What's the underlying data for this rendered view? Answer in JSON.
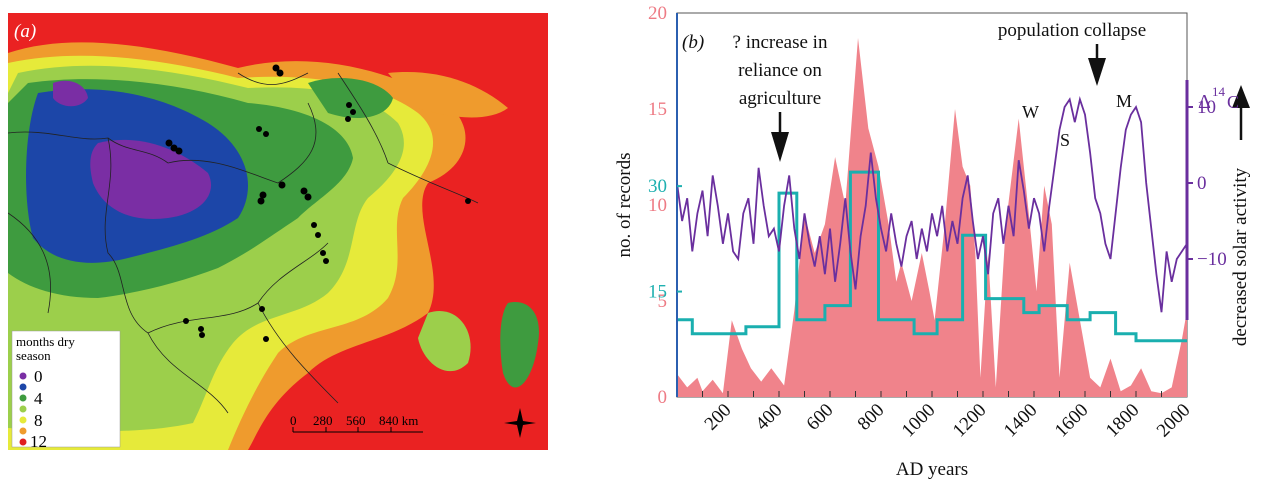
{
  "panel_a": {
    "label": "(a)",
    "legend": {
      "title_line1": "months dry",
      "title_line2": "season",
      "items": [
        {
          "label": "0",
          "color": "#7b2fa6"
        },
        {
          "label": "4",
          "color": "#3f9a3f"
        },
        {
          "label": "8",
          "color": "#f0c020"
        },
        {
          "label": "12",
          "color": "#e02020"
        }
      ]
    },
    "scale_bar": {
      "labels": [
        "0",
        "280",
        "560",
        "840 km"
      ]
    },
    "colors": {
      "red": "#ea2222",
      "orange": "#ef9b2d",
      "yellow": "#e6ea3a",
      "lightgreen": "#9ccf4b",
      "green": "#3e9b3f",
      "blue": "#1c46a8",
      "purple": "#7a2ea4",
      "site": "#000000"
    },
    "site_count_note": ""
  },
  "chart_data": {
    "type": "line",
    "panel_label": "(b)",
    "annotations": {
      "agriculture": [
        "? increase in",
        "reliance on",
        "agriculture"
      ],
      "collapse": "population collapse",
      "minima": {
        "W": "W",
        "S": "S",
        "M": "M"
      }
    },
    "x": {
      "label": "AD years",
      "min": 0,
      "max": 2000,
      "ticks": [
        "200",
        "400",
        "600",
        "800",
        "1000",
        "1200",
        "1400",
        "1600",
        "1800",
        "2000"
      ]
    },
    "y_left_pink": {
      "ticks": [
        "0",
        "5",
        "10",
        "15",
        "20"
      ],
      "max": 20,
      "color": "#ee7b85"
    },
    "y_left_teal": {
      "ticks": [
        "15",
        "30"
      ],
      "color": "#1fb0b0"
    },
    "y_left_label": "no. of records",
    "y_right": {
      "label_delta": "Δ",
      "label_sup": "14",
      "label_c": "C",
      "ticks": [
        "10",
        "0",
        "−10"
      ],
      "label": "decreased solar activity",
      "color": "#6a2f9e"
    },
    "series": [
      {
        "kind": "area",
        "color": "#f0838b",
        "points": [
          [
            0,
            1.2
          ],
          [
            40,
            0.5
          ],
          [
            80,
            1.0
          ],
          [
            100,
            0.3
          ],
          [
            140,
            0.9
          ],
          [
            180,
            0.2
          ],
          [
            215,
            4.0
          ],
          [
            255,
            2.5
          ],
          [
            290,
            1.5
          ],
          [
            330,
            0.8
          ],
          [
            370,
            1.5
          ],
          [
            420,
            0.6
          ],
          [
            460,
            4.5
          ],
          [
            500,
            9.5
          ],
          [
            540,
            7.5
          ],
          [
            580,
            9.0
          ],
          [
            620,
            12.5
          ],
          [
            660,
            10.0
          ],
          [
            710,
            18.7
          ],
          [
            750,
            14.0
          ],
          [
            790,
            12.0
          ],
          [
            830,
            9.0
          ],
          [
            860,
            6.0
          ],
          [
            880,
            7.0
          ],
          [
            920,
            5.0
          ],
          [
            960,
            7.5
          ],
          [
            990,
            5.5
          ],
          [
            1010,
            4.0
          ],
          [
            1050,
            9.0
          ],
          [
            1090,
            15.0
          ],
          [
            1120,
            12.0
          ],
          [
            1150,
            11.0
          ],
          [
            1170,
            7.5
          ],
          [
            1190,
            1.0
          ],
          [
            1220,
            7.5
          ],
          [
            1250,
            0.5
          ],
          [
            1290,
            9.0
          ],
          [
            1340,
            14.5
          ],
          [
            1380,
            9.5
          ],
          [
            1410,
            5.5
          ],
          [
            1440,
            11.0
          ],
          [
            1470,
            9.0
          ],
          [
            1500,
            1.0
          ],
          [
            1540,
            7.0
          ],
          [
            1580,
            4.0
          ],
          [
            1620,
            1.0
          ],
          [
            1660,
            0.5
          ],
          [
            1700,
            2.0
          ],
          [
            1740,
            0.3
          ],
          [
            1780,
            0.6
          ],
          [
            1820,
            1.5
          ],
          [
            1860,
            0.3
          ],
          [
            1900,
            0.2
          ],
          [
            1940,
            0.5
          ],
          [
            1980,
            3.0
          ],
          [
            2000,
            4.5
          ]
        ]
      },
      {
        "kind": "step",
        "color": "#1aafaf",
        "points": [
          [
            0,
            11
          ],
          [
            60,
            11
          ],
          [
            60,
            9
          ],
          [
            270,
            9
          ],
          [
            270,
            10
          ],
          [
            400,
            10
          ],
          [
            400,
            29
          ],
          [
            470,
            29
          ],
          [
            470,
            11
          ],
          [
            580,
            11
          ],
          [
            580,
            13
          ],
          [
            680,
            13
          ],
          [
            680,
            32
          ],
          [
            790,
            32
          ],
          [
            790,
            11
          ],
          [
            930,
            11
          ],
          [
            930,
            9
          ],
          [
            1020,
            9
          ],
          [
            1020,
            11
          ],
          [
            1120,
            11
          ],
          [
            1120,
            23
          ],
          [
            1210,
            23
          ],
          [
            1210,
            14
          ],
          [
            1360,
            14
          ],
          [
            1360,
            12
          ],
          [
            1420,
            12
          ],
          [
            1420,
            13
          ],
          [
            1530,
            13
          ],
          [
            1530,
            11
          ],
          [
            1620,
            11
          ],
          [
            1620,
            12
          ],
          [
            1720,
            12
          ],
          [
            1720,
            9
          ],
          [
            1800,
            9
          ],
          [
            1800,
            8
          ],
          [
            2000,
            8
          ]
        ]
      },
      {
        "kind": "line",
        "color": "#6a2f9e",
        "points": [
          [
            0,
            0
          ],
          [
            20,
            -5
          ],
          [
            40,
            -2
          ],
          [
            60,
            -9
          ],
          [
            80,
            -4
          ],
          [
            100,
            -1
          ],
          [
            120,
            -7
          ],
          [
            140,
            1
          ],
          [
            160,
            -3
          ],
          [
            180,
            -8
          ],
          [
            200,
            -4
          ],
          [
            220,
            -9
          ],
          [
            240,
            -10
          ],
          [
            260,
            -4
          ],
          [
            280,
            -2
          ],
          [
            300,
            -8
          ],
          [
            320,
            2
          ],
          [
            340,
            -3
          ],
          [
            360,
            -7
          ],
          [
            380,
            -6
          ],
          [
            400,
            -9
          ],
          [
            420,
            -3
          ],
          [
            440,
            1
          ],
          [
            460,
            -6
          ],
          [
            480,
            -10
          ],
          [
            500,
            -4
          ],
          [
            520,
            -8
          ],
          [
            540,
            -11
          ],
          [
            560,
            -7
          ],
          [
            580,
            -12
          ],
          [
            600,
            -6
          ],
          [
            620,
            -13
          ],
          [
            640,
            -8
          ],
          [
            660,
            -2
          ],
          [
            680,
            -9
          ],
          [
            700,
            -14
          ],
          [
            720,
            -7
          ],
          [
            740,
            -3
          ],
          [
            760,
            4
          ],
          [
            780,
            -2
          ],
          [
            800,
            -6
          ],
          [
            820,
            -9
          ],
          [
            840,
            -4
          ],
          [
            860,
            -8
          ],
          [
            880,
            -11
          ],
          [
            900,
            -7
          ],
          [
            920,
            -5
          ],
          [
            940,
            -10
          ],
          [
            960,
            -6
          ],
          [
            980,
            -9
          ],
          [
            1000,
            -4
          ],
          [
            1020,
            -7
          ],
          [
            1040,
            -3
          ],
          [
            1060,
            -9
          ],
          [
            1080,
            -5
          ],
          [
            1100,
            -8
          ],
          [
            1120,
            -2
          ],
          [
            1140,
            1
          ],
          [
            1160,
            -5
          ],
          [
            1180,
            -10
          ],
          [
            1200,
            -7
          ],
          [
            1220,
            -12
          ],
          [
            1240,
            -4
          ],
          [
            1260,
            -2
          ],
          [
            1280,
            -8
          ],
          [
            1300,
            -3
          ],
          [
            1320,
            -7
          ],
          [
            1340,
            3
          ],
          [
            1360,
            -1
          ],
          [
            1380,
            -6
          ],
          [
            1400,
            -2
          ],
          [
            1420,
            -4
          ],
          [
            1440,
            -9
          ],
          [
            1460,
            -3
          ],
          [
            1480,
            2
          ],
          [
            1500,
            7
          ],
          [
            1520,
            10
          ],
          [
            1540,
            11
          ],
          [
            1560,
            8
          ],
          [
            1580,
            11
          ],
          [
            1600,
            9
          ],
          [
            1620,
            4
          ],
          [
            1640,
            -2
          ],
          [
            1660,
            -4
          ],
          [
            1680,
            -8
          ],
          [
            1700,
            -10
          ],
          [
            1720,
            -4
          ],
          [
            1740,
            2
          ],
          [
            1760,
            7
          ],
          [
            1780,
            9
          ],
          [
            1800,
            10
          ],
          [
            1820,
            8
          ],
          [
            1840,
            0
          ],
          [
            1860,
            -6
          ],
          [
            1880,
            -12
          ],
          [
            1900,
            -17
          ],
          [
            1920,
            -9
          ],
          [
            1940,
            -13
          ],
          [
            1960,
            -10
          ],
          [
            1980,
            -9
          ],
          [
            2000,
            -8
          ]
        ]
      }
    ]
  }
}
